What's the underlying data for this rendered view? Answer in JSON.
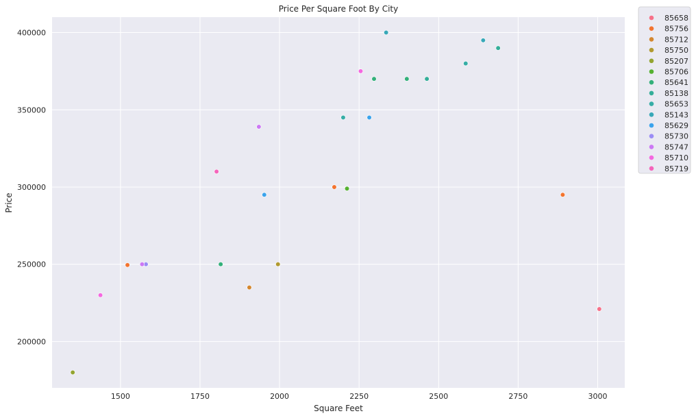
{
  "chart_data": {
    "type": "scatter",
    "title": "Price Per Square Foot By City",
    "xlabel": "Square Feet",
    "ylabel": "Price",
    "xlim": [
      1285,
      3085
    ],
    "ylim": [
      170000,
      410000
    ],
    "xticks": [
      1500,
      1750,
      2000,
      2250,
      2500,
      2750,
      3000
    ],
    "yticks": [
      200000,
      250000,
      300000,
      350000,
      400000
    ],
    "grid": true,
    "background": "#eaeaf2",
    "legend_position": "outside-top-right",
    "series": [
      {
        "name": "85658",
        "color": "#f77189",
        "points": [
          [
            3005,
            221000
          ]
        ]
      },
      {
        "name": "85756",
        "color": "#f3742f",
        "points": [
          [
            1522,
            249500
          ],
          [
            2172,
            300000
          ],
          [
            2890,
            295000
          ]
        ]
      },
      {
        "name": "85712",
        "color": "#d4872f",
        "points": [
          [
            1905,
            235000
          ]
        ]
      },
      {
        "name": "85750",
        "color": "#b19a31",
        "points": [
          [
            1995,
            250000
          ]
        ]
      },
      {
        "name": "85207",
        "color": "#93a431",
        "points": [
          [
            1350,
            180000
          ]
        ]
      },
      {
        "name": "85706",
        "color": "#55b131",
        "points": [
          [
            2212,
            299000
          ]
        ]
      },
      {
        "name": "85641",
        "color": "#33b07a",
        "points": [
          [
            1815,
            250000
          ],
          [
            2297,
            370000
          ],
          [
            2400,
            370000
          ]
        ]
      },
      {
        "name": "85138",
        "color": "#34ae99",
        "points": [
          [
            2463,
            370000
          ],
          [
            2687,
            390000
          ]
        ]
      },
      {
        "name": "85653",
        "color": "#36ada6",
        "points": [
          [
            2200,
            345000
          ],
          [
            2585,
            380000
          ]
        ]
      },
      {
        "name": "85143",
        "color": "#38a8b8",
        "points": [
          [
            2335,
            400000
          ],
          [
            2640,
            395000
          ]
        ]
      },
      {
        "name": "85629",
        "color": "#3ba3ec",
        "points": [
          [
            1952,
            295000
          ],
          [
            2282,
            345000
          ]
        ]
      },
      {
        "name": "85730",
        "color": "#9b8df5",
        "points": [
          [
            1580,
            250000
          ]
        ]
      },
      {
        "name": "85747",
        "color": "#cc79f4",
        "points": [
          [
            1568,
            250000
          ],
          [
            1935,
            339000
          ]
        ]
      },
      {
        "name": "85710",
        "color": "#f469e0",
        "points": [
          [
            1437,
            230000
          ],
          [
            2255,
            375000
          ]
        ]
      },
      {
        "name": "85719",
        "color": "#f565bb",
        "points": [
          [
            1802,
            310000
          ]
        ]
      }
    ]
  }
}
